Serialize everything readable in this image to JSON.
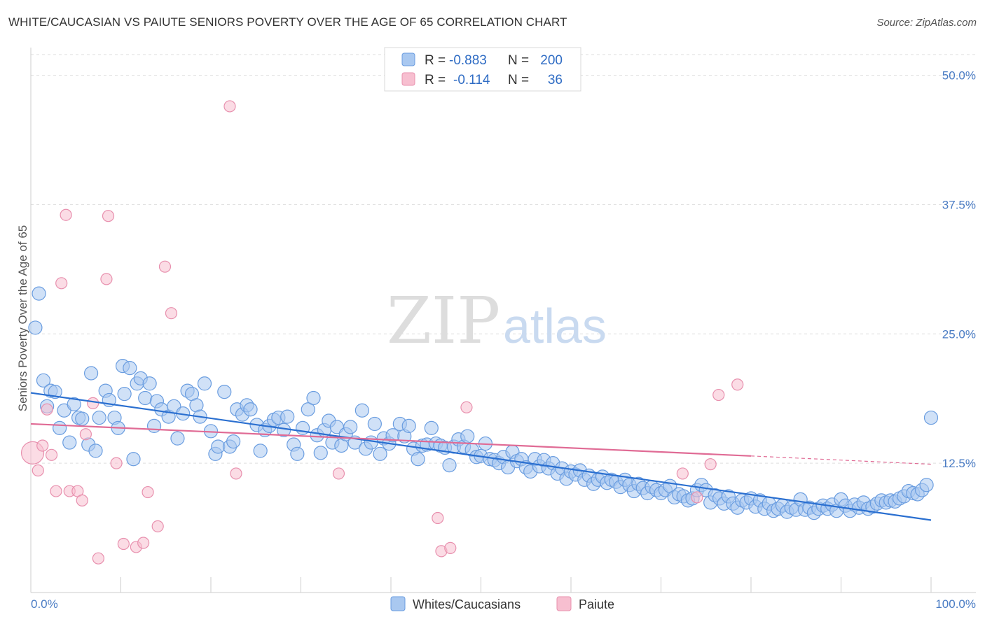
{
  "title": "WHITE/CAUCASIAN VS PAIUTE SENIORS POVERTY OVER THE AGE OF 65 CORRELATION CHART",
  "source": "Source: ZipAtlas.com",
  "watermark": {
    "zip": "ZIP",
    "atlas": "atlas"
  },
  "colors": {
    "blue_fill": "#a9c8f0",
    "blue_stroke": "#6a9de0",
    "blue_line": "#2a6fd0",
    "pink_fill": "#f7bfd0",
    "pink_stroke": "#e890ae",
    "pink_line": "#e06b95",
    "grid": "#dddddd",
    "axis_text": "#4a7cc4"
  },
  "chart_data": {
    "type": "scatter",
    "xlabel": "",
    "ylabel": "Seniors Poverty Over the Age of 65",
    "xlim": [
      0,
      100
    ],
    "ylim": [
      0,
      52
    ],
    "x_tick_labels": [
      "0.0%",
      "100.0%"
    ],
    "y_ticks": [
      12.5,
      25.0,
      37.5,
      50.0
    ],
    "y_tick_labels": [
      "12.5%",
      "25.0%",
      "37.5%",
      "50.0%"
    ],
    "grid": "horizontal dashed",
    "legend": [
      {
        "r_label": "R =",
        "r": "-0.883",
        "n_label": "N =",
        "n": "200"
      },
      {
        "r_label": "R =",
        "r": "-0.114",
        "n_label": "N =",
        "n": "36"
      }
    ],
    "bottom_legend": [
      "Whites/Caucasians",
      "Paiute"
    ],
    "series": [
      {
        "name": "Whites/Caucasians",
        "trend": {
          "x": [
            0,
            100
          ],
          "y": [
            19.3,
            7.0
          ]
        },
        "points": [
          [
            0.5,
            25.6
          ],
          [
            0.9,
            28.9
          ],
          [
            1.4,
            20.5
          ],
          [
            1.8,
            18.0
          ],
          [
            2.2,
            19.5
          ],
          [
            2.7,
            19.4
          ],
          [
            3.2,
            15.9
          ],
          [
            3.7,
            17.6
          ],
          [
            4.3,
            14.5
          ],
          [
            4.8,
            18.2
          ],
          [
            5.3,
            16.9
          ],
          [
            5.7,
            16.8
          ],
          [
            6.4,
            14.3
          ],
          [
            6.7,
            21.2
          ],
          [
            7.2,
            13.7
          ],
          [
            7.6,
            16.9
          ],
          [
            8.3,
            19.5
          ],
          [
            8.7,
            18.6
          ],
          [
            9.3,
            16.9
          ],
          [
            9.7,
            15.9
          ],
          [
            10.2,
            21.9
          ],
          [
            10.4,
            19.2
          ],
          [
            11.0,
            21.7
          ],
          [
            11.4,
            12.9
          ],
          [
            11.8,
            20.2
          ],
          [
            12.2,
            20.7
          ],
          [
            12.7,
            18.8
          ],
          [
            13.2,
            20.2
          ],
          [
            13.7,
            16.1
          ],
          [
            14.0,
            18.5
          ],
          [
            14.5,
            17.7
          ],
          [
            15.3,
            17.0
          ],
          [
            15.9,
            18.0
          ],
          [
            16.3,
            14.9
          ],
          [
            16.9,
            17.3
          ],
          [
            17.4,
            19.5
          ],
          [
            17.9,
            19.2
          ],
          [
            18.4,
            18.1
          ],
          [
            18.8,
            17.0
          ],
          [
            19.3,
            20.2
          ],
          [
            20.0,
            15.6
          ],
          [
            20.5,
            13.4
          ],
          [
            20.8,
            14.1
          ],
          [
            21.5,
            19.4
          ],
          [
            22.1,
            14.1
          ],
          [
            22.5,
            14.6
          ],
          [
            22.9,
            17.7
          ],
          [
            23.5,
            17.2
          ],
          [
            24.0,
            18.1
          ],
          [
            24.4,
            17.7
          ],
          [
            25.1,
            16.2
          ],
          [
            25.5,
            13.7
          ],
          [
            26.0,
            15.7
          ],
          [
            26.5,
            16.1
          ],
          [
            27.0,
            16.7
          ],
          [
            27.5,
            16.9
          ],
          [
            28.1,
            15.7
          ],
          [
            28.5,
            17.0
          ],
          [
            29.2,
            14.3
          ],
          [
            29.6,
            13.4
          ],
          [
            30.2,
            15.9
          ],
          [
            30.8,
            17.7
          ],
          [
            31.4,
            18.8
          ],
          [
            31.8,
            15.2
          ],
          [
            32.2,
            13.5
          ],
          [
            32.6,
            15.7
          ],
          [
            33.1,
            16.6
          ],
          [
            33.5,
            14.5
          ],
          [
            34.0,
            16.0
          ],
          [
            34.5,
            14.2
          ],
          [
            35.0,
            15.3
          ],
          [
            35.5,
            16.0
          ],
          [
            36.0,
            14.5
          ],
          [
            36.8,
            17.6
          ],
          [
            37.2,
            13.9
          ],
          [
            37.8,
            14.5
          ],
          [
            38.2,
            16.3
          ],
          [
            38.8,
            13.4
          ],
          [
            39.2,
            14.9
          ],
          [
            39.8,
            14.4
          ],
          [
            40.2,
            15.2
          ],
          [
            41.0,
            16.3
          ],
          [
            41.5,
            15.1
          ],
          [
            42.0,
            16.1
          ],
          [
            42.5,
            13.9
          ],
          [
            43.0,
            12.9
          ],
          [
            43.5,
            14.2
          ],
          [
            44.0,
            14.3
          ],
          [
            44.5,
            15.9
          ],
          [
            45.0,
            14.4
          ],
          [
            45.5,
            14.2
          ],
          [
            46.0,
            14.0
          ],
          [
            46.5,
            12.3
          ],
          [
            47.0,
            14.1
          ],
          [
            47.5,
            14.8
          ],
          [
            48.1,
            14.1
          ],
          [
            48.5,
            15.1
          ],
          [
            49.0,
            13.8
          ],
          [
            49.5,
            13.1
          ],
          [
            50.0,
            13.2
          ],
          [
            50.5,
            14.4
          ],
          [
            51.0,
            12.9
          ],
          [
            51.5,
            12.8
          ],
          [
            52.0,
            12.5
          ],
          [
            52.5,
            13.1
          ],
          [
            53.0,
            12.1
          ],
          [
            53.5,
            13.6
          ],
          [
            54.0,
            12.7
          ],
          [
            54.5,
            12.9
          ],
          [
            55.0,
            12.1
          ],
          [
            55.5,
            11.7
          ],
          [
            56.0,
            12.9
          ],
          [
            56.5,
            12.2
          ],
          [
            57.0,
            12.8
          ],
          [
            57.5,
            12.0
          ],
          [
            58.0,
            12.5
          ],
          [
            58.5,
            11.5
          ],
          [
            59.0,
            12.0
          ],
          [
            59.5,
            11.0
          ],
          [
            60.0,
            11.7
          ],
          [
            60.5,
            11.4
          ],
          [
            61.0,
            11.8
          ],
          [
            61.5,
            10.9
          ],
          [
            62.0,
            11.3
          ],
          [
            62.5,
            10.5
          ],
          [
            63.0,
            10.9
          ],
          [
            63.5,
            11.2
          ],
          [
            64.0,
            10.6
          ],
          [
            64.5,
            10.9
          ],
          [
            65.0,
            10.7
          ],
          [
            65.5,
            10.2
          ],
          [
            66.0,
            10.9
          ],
          [
            66.5,
            10.4
          ],
          [
            67.0,
            9.8
          ],
          [
            67.5,
            10.5
          ],
          [
            68.0,
            10.1
          ],
          [
            68.5,
            9.6
          ],
          [
            69.0,
            10.2
          ],
          [
            69.5,
            9.9
          ],
          [
            70.0,
            9.6
          ],
          [
            70.5,
            9.9
          ],
          [
            71.0,
            10.3
          ],
          [
            71.5,
            9.2
          ],
          [
            72.0,
            9.5
          ],
          [
            72.5,
            9.3
          ],
          [
            73.0,
            8.9
          ],
          [
            73.5,
            9.1
          ],
          [
            74.0,
            9.9
          ],
          [
            74.5,
            10.4
          ],
          [
            75.0,
            9.9
          ],
          [
            75.5,
            8.7
          ],
          [
            76.0,
            9.4
          ],
          [
            76.5,
            9.1
          ],
          [
            77.0,
            8.6
          ],
          [
            77.5,
            9.3
          ],
          [
            78.0,
            8.6
          ],
          [
            78.5,
            8.2
          ],
          [
            79.0,
            8.9
          ],
          [
            79.5,
            8.7
          ],
          [
            80.0,
            9.1
          ],
          [
            80.5,
            8.3
          ],
          [
            81.0,
            8.9
          ],
          [
            81.5,
            8.1
          ],
          [
            82.0,
            8.6
          ],
          [
            82.5,
            7.9
          ],
          [
            83.0,
            8.1
          ],
          [
            83.5,
            8.4
          ],
          [
            84.0,
            7.8
          ],
          [
            84.5,
            8.2
          ],
          [
            85.0,
            8.0
          ],
          [
            85.5,
            9.0
          ],
          [
            86.0,
            8.0
          ],
          [
            86.5,
            8.2
          ],
          [
            87.0,
            7.7
          ],
          [
            87.5,
            8.1
          ],
          [
            88.0,
            8.4
          ],
          [
            88.5,
            8.1
          ],
          [
            89.0,
            8.5
          ],
          [
            89.5,
            7.9
          ],
          [
            90.0,
            9.0
          ],
          [
            90.5,
            8.4
          ],
          [
            91.0,
            7.9
          ],
          [
            91.5,
            8.5
          ],
          [
            92.0,
            8.2
          ],
          [
            92.5,
            8.7
          ],
          [
            93.0,
            8.1
          ],
          [
            93.5,
            8.3
          ],
          [
            94.0,
            8.6
          ],
          [
            94.5,
            8.9
          ],
          [
            95.0,
            8.7
          ],
          [
            95.5,
            8.9
          ],
          [
            96.0,
            8.8
          ],
          [
            96.5,
            9.1
          ],
          [
            97.0,
            9.3
          ],
          [
            97.5,
            9.8
          ],
          [
            98.0,
            9.6
          ],
          [
            98.5,
            9.5
          ],
          [
            99.0,
            9.9
          ],
          [
            99.5,
            10.4
          ],
          [
            100.0,
            16.9
          ]
        ]
      },
      {
        "name": "Paiute",
        "trend": {
          "x": [
            0,
            80
          ],
          "y": [
            16.3,
            13.2
          ]
        },
        "trend_dashed": {
          "x": [
            80,
            100
          ],
          "y": [
            13.2,
            12.4
          ]
        },
        "points": [
          [
            0.2,
            13.5
          ],
          [
            0.8,
            11.8
          ],
          [
            1.3,
            14.2
          ],
          [
            1.8,
            17.7
          ],
          [
            2.3,
            13.3
          ],
          [
            2.8,
            9.8
          ],
          [
            3.4,
            29.9
          ],
          [
            3.9,
            36.5
          ],
          [
            4.3,
            9.8
          ],
          [
            5.2,
            9.8
          ],
          [
            5.7,
            8.9
          ],
          [
            6.1,
            15.3
          ],
          [
            6.9,
            18.3
          ],
          [
            7.5,
            3.3
          ],
          [
            8.4,
            30.3
          ],
          [
            8.6,
            36.4
          ],
          [
            9.5,
            12.5
          ],
          [
            10.3,
            4.7
          ],
          [
            11.7,
            4.4
          ],
          [
            12.5,
            4.8
          ],
          [
            13.0,
            9.7
          ],
          [
            14.1,
            6.4
          ],
          [
            14.9,
            31.5
          ],
          [
            15.6,
            27.0
          ],
          [
            22.1,
            47.0
          ],
          [
            22.8,
            11.5
          ],
          [
            34.2,
            11.5
          ],
          [
            45.2,
            7.2
          ],
          [
            45.6,
            4.0
          ],
          [
            46.6,
            4.3
          ],
          [
            48.4,
            17.9
          ],
          [
            72.4,
            11.5
          ],
          [
            74.0,
            9.2
          ],
          [
            75.5,
            12.4
          ],
          [
            76.4,
            19.1
          ],
          [
            78.5,
            20.1
          ]
        ]
      }
    ]
  }
}
